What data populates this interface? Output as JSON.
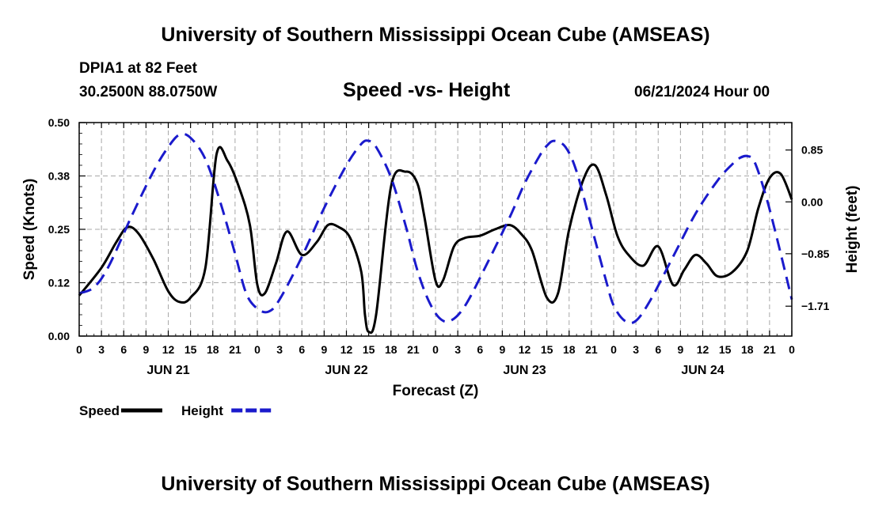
{
  "header": {
    "title": "University of Southern Mississippi Ocean Cube (AMSEAS)",
    "station_name": "DPIA1 at 82 Feet",
    "station_coords": "30.2500N  88.0750W",
    "chart_title": "Speed -vs- Height",
    "datetime": "06/21/2024 Hour 00"
  },
  "footer": {
    "title": "University of Southern Mississippi Ocean Cube (AMSEAS)"
  },
  "chart_data": {
    "type": "line",
    "title": "Speed -vs- Height",
    "xlabel": "Forecast (Z)",
    "ylabel_left": "Speed (Knots)",
    "ylabel_right": "Height (feet)",
    "x_range_hours": [
      0,
      96
    ],
    "x_ticks": [
      {
        "h": 0,
        "label": "0"
      },
      {
        "h": 3,
        "label": "3"
      },
      {
        "h": 6,
        "label": "6"
      },
      {
        "h": 9,
        "label": "9"
      },
      {
        "h": 12,
        "label": "12"
      },
      {
        "h": 15,
        "label": "15"
      },
      {
        "h": 18,
        "label": "18"
      },
      {
        "h": 21,
        "label": "21"
      },
      {
        "h": 24,
        "label": "0"
      },
      {
        "h": 27,
        "label": "3"
      },
      {
        "h": 30,
        "label": "6"
      },
      {
        "h": 33,
        "label": "9"
      },
      {
        "h": 36,
        "label": "12"
      },
      {
        "h": 39,
        "label": "15"
      },
      {
        "h": 42,
        "label": "18"
      },
      {
        "h": 45,
        "label": "21"
      },
      {
        "h": 48,
        "label": "0"
      },
      {
        "h": 51,
        "label": "3"
      },
      {
        "h": 54,
        "label": "6"
      },
      {
        "h": 57,
        "label": "9"
      },
      {
        "h": 60,
        "label": "12"
      },
      {
        "h": 63,
        "label": "15"
      },
      {
        "h": 66,
        "label": "18"
      },
      {
        "h": 69,
        "label": "21"
      },
      {
        "h": 72,
        "label": "0"
      },
      {
        "h": 75,
        "label": "3"
      },
      {
        "h": 78,
        "label": "6"
      },
      {
        "h": 81,
        "label": "9"
      },
      {
        "h": 84,
        "label": "12"
      },
      {
        "h": 87,
        "label": "15"
      },
      {
        "h": 90,
        "label": "18"
      },
      {
        "h": 93,
        "label": "21"
      },
      {
        "h": 96,
        "label": "0"
      }
    ],
    "date_labels": [
      {
        "h": 12,
        "label": "JUN 21"
      },
      {
        "h": 36,
        "label": "JUN 22"
      },
      {
        "h": 60,
        "label": "JUN 23"
      },
      {
        "h": 84,
        "label": "JUN 24"
      }
    ],
    "y_left_range": [
      0,
      0.5
    ],
    "y_left_ticks": [
      {
        "v": 0.0,
        "label": "0.00"
      },
      {
        "v": 0.125,
        "label": "0.12"
      },
      {
        "v": 0.25,
        "label": "0.25"
      },
      {
        "v": 0.375,
        "label": "0.38"
      },
      {
        "v": 0.5,
        "label": "0.50"
      }
    ],
    "y_right_range": [
      -2.2,
      1.3
    ],
    "y_right_ticks": [
      {
        "v": 0.85,
        "label": "0.85"
      },
      {
        "v": 0.0,
        "label": "0.00"
      },
      {
        "v": -0.85,
        "label": "−0.85"
      },
      {
        "v": -1.71,
        "label": "−1.71"
      }
    ],
    "grid": true,
    "series": [
      {
        "name": "Speed",
        "axis": "left",
        "color": "#000000",
        "dash": "solid",
        "x": [
          0,
          3,
          5,
          6.5,
          8,
          10,
          12,
          13.5,
          15,
          17,
          18.5,
          20,
          21.5,
          23,
          24,
          25,
          26.5,
          28,
          30,
          32,
          33.5,
          35,
          36.5,
          38,
          38.5,
          39,
          40,
          42,
          44,
          45.5,
          46.5,
          48,
          49,
          50.5,
          52,
          54,
          56,
          58,
          59.5,
          61,
          63,
          64.5,
          66,
          68,
          69.5,
          71,
          72.5,
          74,
          76,
          78,
          80,
          81.5,
          83,
          84.5,
          86,
          88,
          90,
          91.5,
          93,
          94.5,
          96
        ],
        "values": [
          0.095,
          0.16,
          0.22,
          0.255,
          0.24,
          0.18,
          0.105,
          0.08,
          0.09,
          0.16,
          0.425,
          0.41,
          0.35,
          0.26,
          0.12,
          0.1,
          0.17,
          0.245,
          0.19,
          0.22,
          0.26,
          0.255,
          0.23,
          0.15,
          0.05,
          0.01,
          0.05,
          0.35,
          0.385,
          0.36,
          0.28,
          0.13,
          0.13,
          0.21,
          0.23,
          0.235,
          0.25,
          0.26,
          0.24,
          0.2,
          0.09,
          0.1,
          0.25,
          0.37,
          0.4,
          0.33,
          0.235,
          0.19,
          0.165,
          0.21,
          0.12,
          0.155,
          0.19,
          0.17,
          0.14,
          0.15,
          0.2,
          0.3,
          0.37,
          0.38,
          0.32
        ]
      },
      {
        "name": "Height",
        "axis": "right",
        "color": "#1a1acc",
        "dash": "dashed",
        "x": [
          0,
          2,
          4,
          7,
          10,
          12,
          13.5,
          15,
          17,
          19,
          21,
          22.5,
          24,
          25.5,
          27,
          30,
          33,
          36,
          38,
          39,
          40,
          42,
          44,
          45.5,
          47,
          48.5,
          50,
          52,
          55,
          58,
          60,
          62,
          63,
          64,
          65.5,
          67,
          69,
          71,
          72,
          73.5,
          75,
          77,
          80,
          83,
          86,
          88,
          89,
          90,
          91,
          92.5,
          94,
          96
        ],
        "values": [
          -1.5,
          -1.4,
          -1.05,
          -0.25,
          0.5,
          0.9,
          1.1,
          1.05,
          0.7,
          0.0,
          -0.85,
          -1.5,
          -1.75,
          -1.8,
          -1.6,
          -0.9,
          -0.1,
          0.6,
          0.95,
          1.0,
          0.9,
          0.4,
          -0.4,
          -1.1,
          -1.6,
          -1.9,
          -1.95,
          -1.7,
          -1.0,
          -0.25,
          0.3,
          0.75,
          0.92,
          1.0,
          0.9,
          0.5,
          -0.4,
          -1.3,
          -1.7,
          -1.95,
          -1.95,
          -1.6,
          -0.9,
          -0.2,
          0.35,
          0.62,
          0.72,
          0.75,
          0.65,
          0.1,
          -0.6,
          -1.6
        ]
      }
    ],
    "legend": [
      {
        "label": "Speed",
        "color": "#000000",
        "dash": "solid"
      },
      {
        "label": "Height",
        "color": "#1a1acc",
        "dash": "dashed"
      }
    ]
  }
}
